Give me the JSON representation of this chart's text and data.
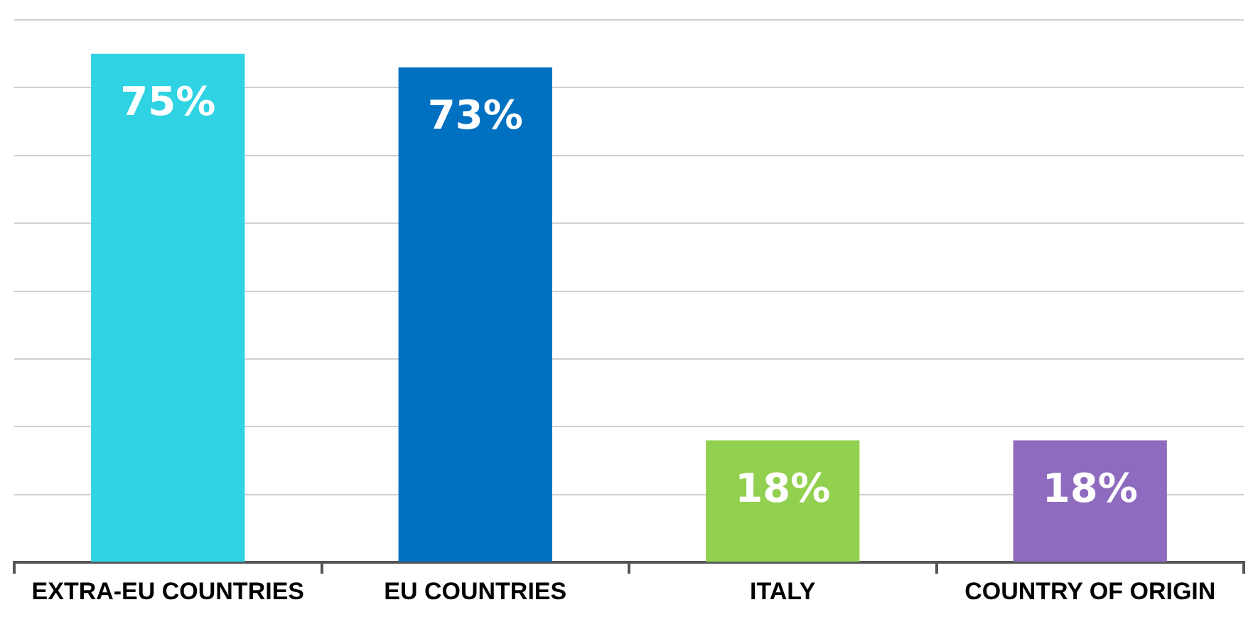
{
  "chart_data": {
    "type": "bar",
    "categories": [
      "EXTRA-EU COUNTRIES",
      "EU COUNTRIES",
      "ITALY",
      "COUNTRY OF ORIGIN"
    ],
    "values": [
      75,
      73,
      18,
      18
    ],
    "colors": [
      "#2fd3e3",
      "#0070c0",
      "#92d050",
      "#8e6bbf"
    ],
    "value_labels": [
      "75%",
      "73%",
      "18%",
      "18%"
    ],
    "tick_labels": "x",
    "grid": "y"
  }
}
